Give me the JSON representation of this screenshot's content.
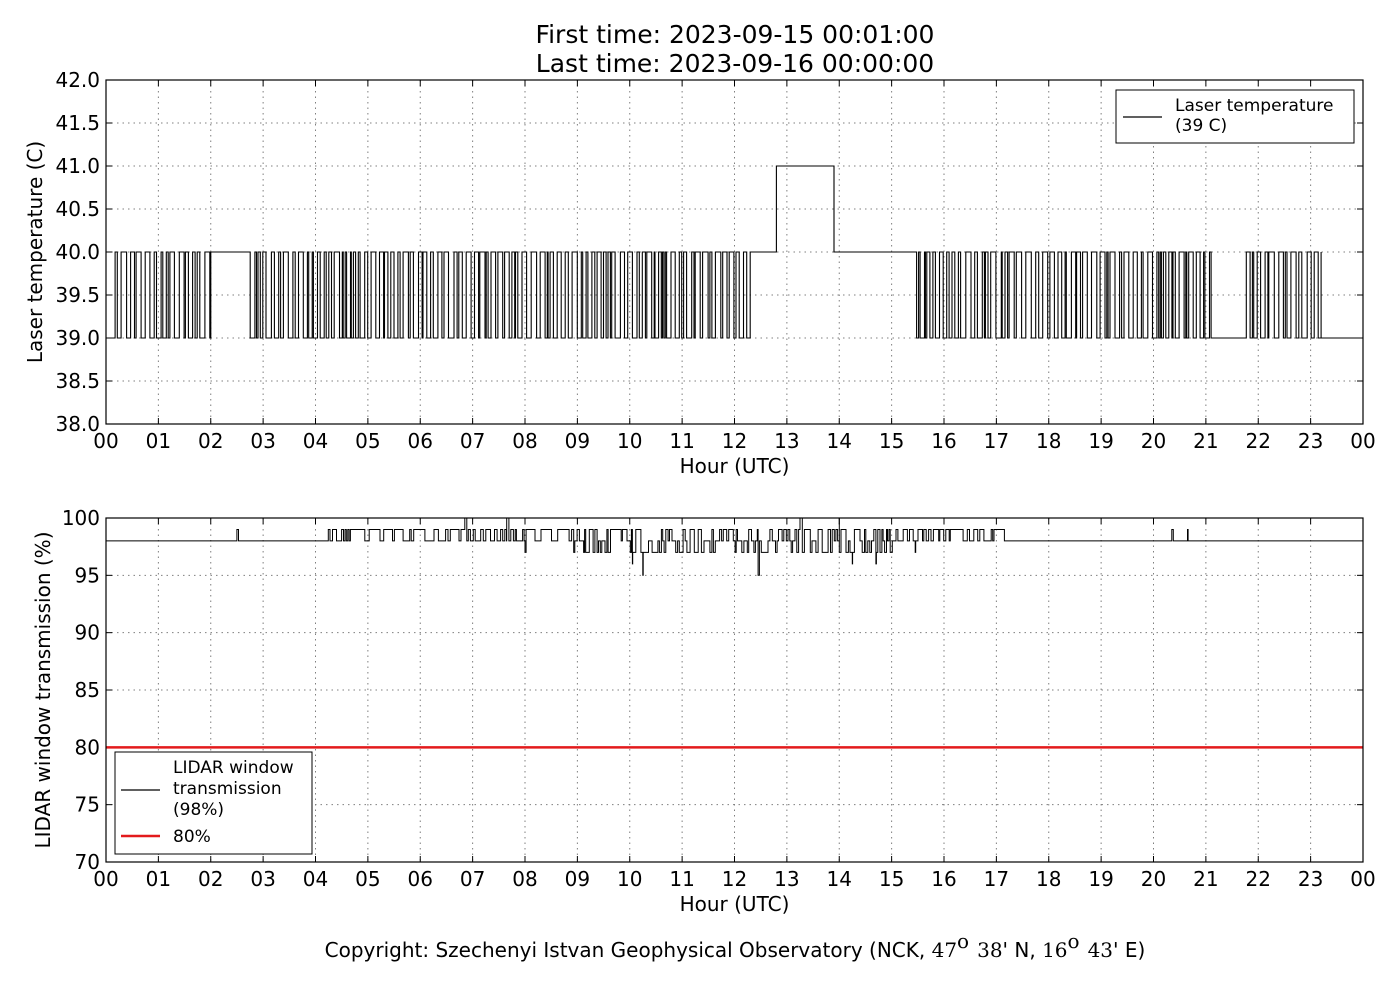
{
  "figure": {
    "title_line1": "First time: 2023-09-15 00:01:00",
    "title_line2": "Last time: 2023-09-16 00:00:00",
    "copyright_prefix": "Copyright: Szechenyi Istvan Geophysical Observatory (NCK, ",
    "lat_deg": "47",
    "lat_sup": "o",
    "lat_min": "38",
    "lat_suffix": "' N, ",
    "lon_deg": "16",
    "lon_sup": "o",
    "lon_min": "43",
    "lon_suffix": "' E)"
  },
  "chart_data": [
    {
      "type": "line",
      "xlabel": "Hour (UTC)",
      "ylabel": "Laser temperature (C)",
      "xlim": [
        0,
        24
      ],
      "ylim": [
        38.0,
        42.0
      ],
      "x_ticks": [
        0,
        1,
        2,
        3,
        4,
        5,
        6,
        7,
        8,
        9,
        10,
        11,
        12,
        13,
        14,
        15,
        16,
        17,
        18,
        19,
        20,
        21,
        22,
        23,
        24
      ],
      "x_tick_labels": [
        "00",
        "01",
        "02",
        "03",
        "04",
        "05",
        "06",
        "07",
        "08",
        "09",
        "10",
        "11",
        "12",
        "13",
        "14",
        "15",
        "16",
        "17",
        "18",
        "19",
        "20",
        "21",
        "22",
        "23",
        "00"
      ],
      "y_ticks": [
        38.0,
        38.5,
        39.0,
        39.5,
        40.0,
        40.5,
        41.0,
        41.5,
        42.0
      ],
      "y_tick_labels": [
        "38.0",
        "38.5",
        "39.0",
        "39.5",
        "40.0",
        "40.5",
        "41.0",
        "41.5",
        "42.0"
      ],
      "grid": true,
      "legend": "top-right",
      "series": [
        {
          "name": "Laser temperature\n(39 C)",
          "color": "#000000",
          "values_allowed": [
            39,
            40,
            41
          ],
          "segments": [
            {
              "x": [
                0.1,
                2.0
              ],
              "y": "toggle"
            },
            {
              "x": [
                2.0,
                2.7
              ],
              "y": 40
            },
            {
              "x": [
                2.7,
                12.3
              ],
              "y": "toggle"
            },
            {
              "x": [
                12.3,
                12.8
              ],
              "y": 40
            },
            {
              "x": [
                12.8,
                13.9
              ],
              "y": 41
            },
            {
              "x": [
                13.9,
                15.4
              ],
              "y": 40
            },
            {
              "x": [
                15.4,
                21.1
              ],
              "y": "toggle"
            },
            {
              "x": [
                21.1,
                21.7
              ],
              "y": 39
            },
            {
              "x": [
                21.7,
                23.2
              ],
              "y": "toggle"
            },
            {
              "x": [
                23.2,
                24.0
              ],
              "y": 39
            }
          ]
        }
      ]
    },
    {
      "type": "line",
      "xlabel": "Hour (UTC)",
      "ylabel": "LIDAR window transmission (%)",
      "xlim": [
        0,
        24
      ],
      "ylim": [
        70,
        100
      ],
      "x_ticks": [
        0,
        1,
        2,
        3,
        4,
        5,
        6,
        7,
        8,
        9,
        10,
        11,
        12,
        13,
        14,
        15,
        16,
        17,
        18,
        19,
        20,
        21,
        22,
        23,
        24
      ],
      "x_tick_labels": [
        "00",
        "01",
        "02",
        "03",
        "04",
        "05",
        "06",
        "07",
        "08",
        "09",
        "10",
        "11",
        "12",
        "13",
        "14",
        "15",
        "16",
        "17",
        "18",
        "19",
        "20",
        "21",
        "22",
        "23",
        "00"
      ],
      "y_ticks": [
        70,
        75,
        80,
        85,
        90,
        95,
        100
      ],
      "y_tick_labels": [
        "70",
        "75",
        "80",
        "85",
        "90",
        "95",
        "100"
      ],
      "grid": true,
      "legend": "bottom-left",
      "series": [
        {
          "name": "LIDAR window\ntransmission\n(98%)",
          "color": "#000000",
          "baseline": 98,
          "spikes_up": [
            {
              "x": 2.5,
              "y": 99
            },
            {
              "x": 20.35,
              "y": 99
            },
            {
              "x": 20.65,
              "y": 99
            },
            {
              "x": 7.65,
              "y": 100
            },
            {
              "x": 6.85,
              "y": 100
            },
            {
              "x": 13.25,
              "y": 100
            },
            {
              "x": 14.0,
              "y": 100
            }
          ],
          "spikes_down": [
            {
              "x": 8.0,
              "y": 97
            },
            {
              "x": 10.05,
              "y": 96
            },
            {
              "x": 10.25,
              "y": 95
            },
            {
              "x": 12.45,
              "y": 95
            },
            {
              "x": 13.45,
              "y": 97
            },
            {
              "x": 14.25,
              "y": 96
            },
            {
              "x": 14.7,
              "y": 96
            },
            {
              "x": 15.45,
              "y": 97
            }
          ],
          "noisy_band": {
            "x": [
              4.2,
              17.2
            ],
            "y_high": 99
          },
          "dip_band": {
            "x": [
              8.9,
              15.0
            ],
            "y_low": 97
          }
        },
        {
          "name": "80%",
          "color": "#e31a1c",
          "constant": 80
        }
      ]
    }
  ]
}
